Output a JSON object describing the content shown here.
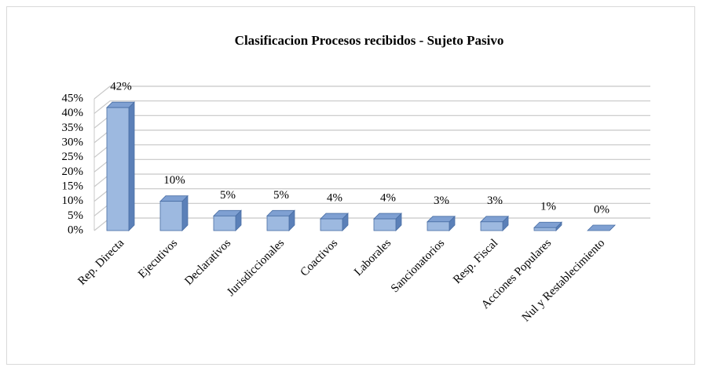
{
  "chart_data": {
    "type": "bar",
    "title": "Clasificacion Procesos recibidos - Sujeto Pasivo",
    "categories": [
      "Rep. Directa",
      "Ejecutivos",
      "Declarativos",
      "Jurisdiccionales",
      "Coactivos",
      "Laborales",
      "Sancionatorios",
      "Resp. Fiscal",
      "Acciones Populares",
      "Nul y Restablecimiento"
    ],
    "values": [
      42,
      10,
      5,
      5,
      4,
      4,
      3,
      3,
      1,
      0
    ],
    "value_labels": [
      "42%",
      "10%",
      "5%",
      "5%",
      "4%",
      "4%",
      "3%",
      "3%",
      "1%",
      "0%"
    ],
    "color": "#9db9e0",
    "ylim": [
      0,
      45
    ],
    "yticks": [
      {
        "value": 0,
        "label": "0%"
      },
      {
        "value": 5,
        "label": "5%"
      },
      {
        "value": 10,
        "label": "10%"
      },
      {
        "value": 15,
        "label": "15%"
      },
      {
        "value": 20,
        "label": "20%"
      },
      {
        "value": 25,
        "label": "25%"
      },
      {
        "value": 30,
        "label": "30%"
      },
      {
        "value": 35,
        "label": "35%"
      },
      {
        "value": 40,
        "label": "40%"
      },
      {
        "value": 45,
        "label": "45%"
      }
    ],
    "grid": true
  }
}
